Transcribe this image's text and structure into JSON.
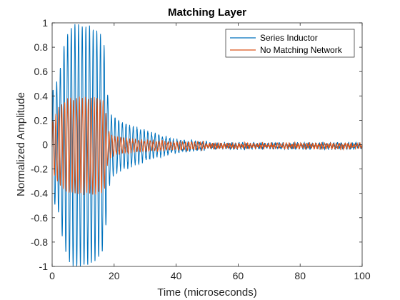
{
  "chart_data": {
    "type": "line",
    "title": "Matching Layer",
    "xlabel": "Time (microseconds)",
    "ylabel": "Normalized Amplitude",
    "xlim": [
      0,
      100
    ],
    "ylim": [
      -1,
      1
    ],
    "xticks": [
      0,
      20,
      40,
      60,
      80,
      100
    ],
    "xtick_labels": [
      "0",
      "20",
      "40",
      "60",
      "80",
      "100"
    ],
    "yticks": [
      -1,
      -0.8,
      -0.6,
      -0.4,
      -0.2,
      0,
      0.2,
      0.4,
      0.6,
      0.8,
      1
    ],
    "ytick_labels": [
      "-1",
      "-0.8",
      "-0.6",
      "-0.4",
      "-0.2",
      "0",
      "0.2",
      "0.4",
      "0.6",
      "0.8",
      "1"
    ],
    "grid": false,
    "legend": {
      "position": "top-right"
    },
    "series": [
      {
        "name": "Series Inductor",
        "color": "#0072bd",
        "envelope": [
          [
            0,
            0.45
          ],
          [
            2,
            0.55
          ],
          [
            4,
            0.85
          ],
          [
            6,
            0.98
          ],
          [
            8,
            1.0
          ],
          [
            10,
            0.99
          ],
          [
            12,
            0.98
          ],
          [
            14,
            0.95
          ],
          [
            16,
            0.9
          ],
          [
            17,
            0.8
          ],
          [
            18,
            0.4
          ],
          [
            19,
            0.25
          ],
          [
            22,
            0.2
          ],
          [
            26,
            0.16
          ],
          [
            30,
            0.12
          ],
          [
            35,
            0.08
          ],
          [
            40,
            0.05
          ],
          [
            45,
            0.035
          ],
          [
            50,
            0.03
          ],
          [
            100,
            0.03
          ]
        ],
        "offset": -0.01,
        "frequency_mhz": 0.85,
        "noise_amplitude": 0.015
      },
      {
        "name": "No Matching Network",
        "color": "#d95319",
        "envelope": [
          [
            0,
            0.2
          ],
          [
            2,
            0.3
          ],
          [
            4,
            0.37
          ],
          [
            6,
            0.39
          ],
          [
            10,
            0.39
          ],
          [
            14,
            0.39
          ],
          [
            16,
            0.38
          ],
          [
            17,
            0.35
          ],
          [
            18,
            0.12
          ],
          [
            20,
            0.07
          ],
          [
            25,
            0.05
          ],
          [
            30,
            0.04
          ],
          [
            40,
            0.03
          ],
          [
            50,
            0.025
          ],
          [
            100,
            0.025
          ]
        ],
        "offset": -0.01,
        "frequency_mhz": 1.05,
        "noise_amplitude": 0.015
      }
    ]
  }
}
